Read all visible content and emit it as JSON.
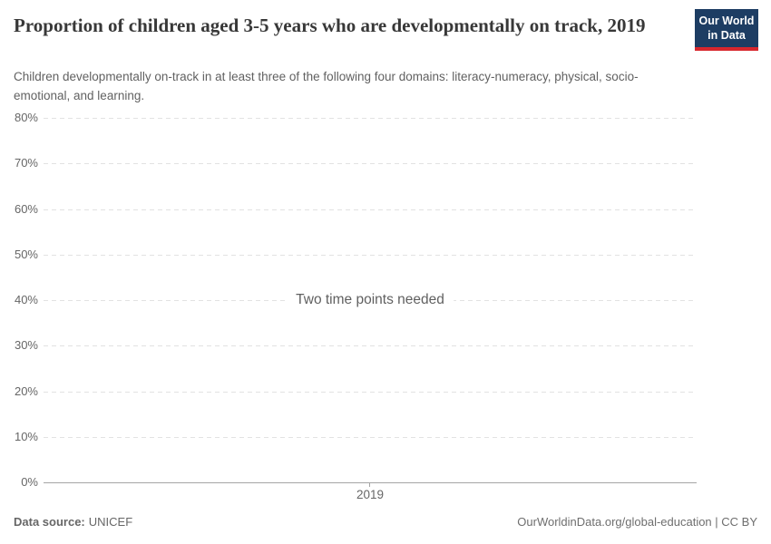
{
  "header": {
    "title": "Proportion of children aged 3-5 years who are developmentally on track, 2019",
    "subtitle": "Children developmentally on-track in at least three of the following four domains: literacy-numeracy, physical, socio-emotional, and learning.",
    "logo": {
      "line1": "Our World",
      "line2": "in Data"
    }
  },
  "chart_data": {
    "type": "line",
    "title": "Proportion of children aged 3-5 years who are developmentally on track, 2019",
    "x": [
      2019
    ],
    "xticks": [
      "2019"
    ],
    "series": [],
    "annotation": "Two time points needed",
    "xlabel": "",
    "ylabel": "",
    "ylim": [
      0,
      80
    ],
    "yticks": [
      "0%",
      "10%",
      "20%",
      "30%",
      "40%",
      "50%",
      "60%",
      "70%",
      "80%"
    ],
    "grid": "horizontal-dashed",
    "legend": "none"
  },
  "colors": {
    "logo_bg": "#1d3d63",
    "logo_accent": "#d7262d",
    "title_text": "#383838",
    "subtitle_text": "#616161",
    "muted_text": "#666666",
    "gridline": "#e2e2e2",
    "axis": "#a5a5a5"
  },
  "footer": {
    "source_label": "Data source:",
    "source_value": "UNICEF",
    "attribution": "OurWorldinData.org/global-education | CC BY"
  }
}
